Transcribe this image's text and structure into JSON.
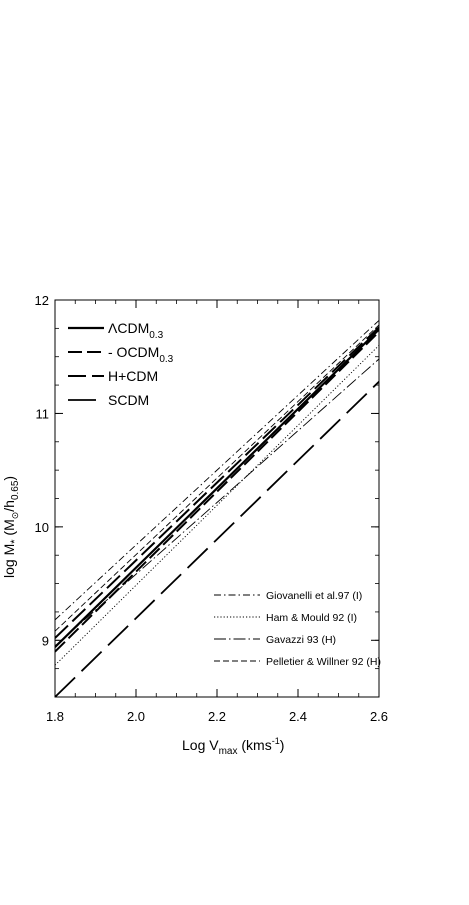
{
  "chart_data": {
    "type": "line",
    "xlabel": "Log V",
    "xlabel_sub": "max",
    "xlabel_unit": "(kms",
    "xlabel_unit_sup": "-1",
    "xlabel_unit_close": ")",
    "ylabel": "log M",
    "ylabel_sub": "*",
    "ylabel_paren_open": "(M",
    "ylabel_sun": "⊙",
    "ylabel_slash": "/h",
    "ylabel_h_sub": "0.65",
    "ylabel_paren_close": ")",
    "xlim": [
      1.8,
      2.6
    ],
    "ylim": [
      8.5,
      12
    ],
    "x_ticks": [
      "1.8",
      "2.0",
      "2.2",
      "2.4",
      "2.6"
    ],
    "y_ticks": [
      "9",
      "10",
      "11",
      "12"
    ],
    "x_tick_values": [
      1.8,
      2.0,
      2.2,
      2.4,
      2.6
    ],
    "y_tick_values": [
      9,
      10,
      11,
      12
    ],
    "legend_placement_models": "top-left",
    "legend_placement_observations": "bottom-right",
    "series": [
      {
        "name": "ΛCDM",
        "name_sub": "0.3",
        "style": "solid",
        "group": "model",
        "x": [
          1.8,
          2.6
        ],
        "y": [
          8.94,
          11.74
        ]
      },
      {
        "name": "- OCDM",
        "name_sub": "0.3",
        "style": "dash-medium",
        "group": "model",
        "x": [
          1.8,
          2.6
        ],
        "y": [
          8.9,
          11.72
        ]
      },
      {
        "name": "H+CDM",
        "name_sub": "",
        "style": "dash-long",
        "group": "model",
        "x": [
          1.8,
          2.6
        ],
        "y": [
          9.02,
          11.76
        ]
      },
      {
        "name": "SCDM",
        "name_sub": "",
        "style": "dash-xlong",
        "group": "model",
        "x": [
          1.8,
          2.6
        ],
        "y": [
          8.5,
          11.28
        ]
      },
      {
        "name": "Giovanelli et al.97 (I)",
        "name_sub": "",
        "style": "dash-dot",
        "group": "observation",
        "x": [
          1.8,
          2.6
        ],
        "y": [
          9.18,
          11.82
        ]
      },
      {
        "name": "Ham & Mould 92 (I)",
        "name_sub": "",
        "style": "dotted",
        "group": "observation",
        "x": [
          1.8,
          2.6
        ],
        "y": [
          8.78,
          11.6
        ]
      },
      {
        "name": "Gavazzi 93 (H)",
        "name_sub": "",
        "style": "dash-dot-long",
        "group": "observation",
        "x": [
          1.8,
          2.6
        ],
        "y": [
          8.95,
          11.48
        ]
      },
      {
        "name": "Pelletier & Willner 92 (H)",
        "name_sub": "",
        "style": "dashed-thin",
        "group": "observation",
        "x": [
          1.8,
          2.6
        ],
        "y": [
          9.08,
          11.78
        ]
      }
    ]
  }
}
